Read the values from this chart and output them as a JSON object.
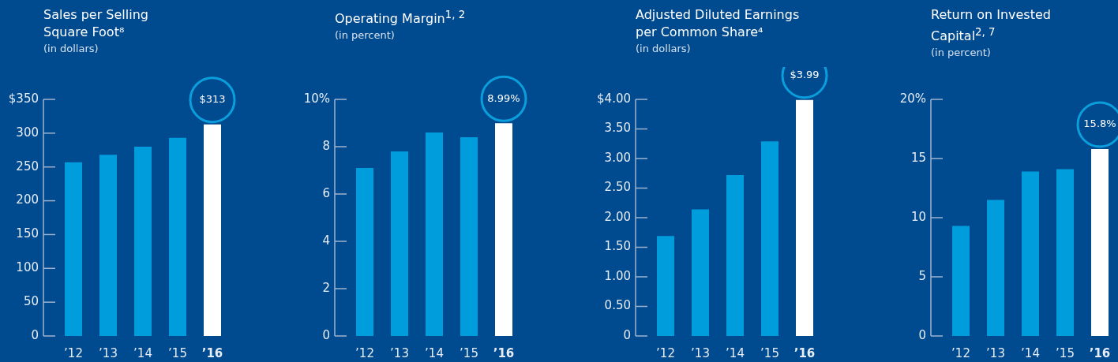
{
  "chart_data": [
    {
      "type": "bar",
      "title": "Sales per Selling Square Foot⁸",
      "subtitle": "(in dollars)",
      "categories": [
        "’12",
        "’13",
        "’14",
        "’15",
        "’16"
      ],
      "values": [
        257,
        268,
        280,
        293,
        313
      ],
      "colors": [
        "#009ddc",
        "#009ddc",
        "#009ddc",
        "#009ddc",
        "#ffffff"
      ],
      "value_labels": [
        null,
        null,
        null,
        null,
        "$313"
      ],
      "ylim": [
        0,
        350
      ],
      "yticks": [
        0,
        50,
        100,
        150,
        200,
        250,
        300,
        {
          "value": 350,
          "label": "$350"
        }
      ]
    },
    {
      "type": "bar",
      "title": "Operating Margin$^{1, 2}$",
      "subtitle": "(in percent)",
      "categories": [
        "’12",
        "’13",
        "’14",
        "’15",
        "’16"
      ],
      "values": [
        7.1,
        7.8,
        8.6,
        8.4,
        8.99
      ],
      "colors": [
        "#009ddc",
        "#009ddc",
        "#009ddc",
        "#009ddc",
        "#ffffff"
      ],
      "value_labels": [
        null,
        null,
        null,
        null,
        "8.99%"
      ],
      "ylim": [
        0,
        10
      ],
      "yticks": [
        0,
        2,
        4,
        6,
        8,
        {
          "value": 10,
          "label": "10%"
        }
      ]
    },
    {
      "type": "bar",
      "title": "Adjusted Diluted Earnings per Common Share⁴",
      "subtitle": "(in dollars)",
      "categories": [
        "’12",
        "’13",
        "’14",
        "’15",
        "’16"
      ],
      "values": [
        1.69,
        2.14,
        2.72,
        3.29,
        3.99
      ],
      "colors": [
        "#009ddc",
        "#009ddc",
        "#009ddc",
        "#009ddc",
        "#ffffff"
      ],
      "value_labels": [
        null,
        null,
        null,
        null,
        "$3.99"
      ],
      "ylim": [
        0,
        4
      ],
      "yticks": [
        0,
        {
          "value": 0.5,
          "label": "0.50"
        },
        {
          "value": 1,
          "label": "1.00"
        },
        {
          "value": 1.5,
          "label": "1.50"
        },
        {
          "value": 2,
          "label": "2.00"
        },
        {
          "value": 2.5,
          "label": "2.50"
        },
        {
          "value": 3,
          "label": "3.00"
        },
        {
          "value": 3.5,
          "label": "3.50"
        },
        {
          "value": 4,
          "label": "$4.00"
        }
      ]
    },
    {
      "type": "bar",
      "title": "Return on Invested Capital$^{2, 7}$",
      "subtitle": "(in percent)",
      "categories": [
        "’12",
        "’13",
        "’14",
        "’15",
        "’16"
      ],
      "values": [
        9.3,
        11.5,
        13.9,
        14.1,
        15.8
      ],
      "colors": [
        "#009ddc",
        "#009ddc",
        "#009ddc",
        "#009ddc",
        "#ffffff"
      ],
      "value_labels": [
        null,
        null,
        null,
        null,
        "15.8%"
      ],
      "ylim": [
        0,
        20
      ],
      "yticks": [
        0,
        5,
        10,
        15,
        {
          "value": 20,
          "label": "20%"
        }
      ]
    }
  ]
}
